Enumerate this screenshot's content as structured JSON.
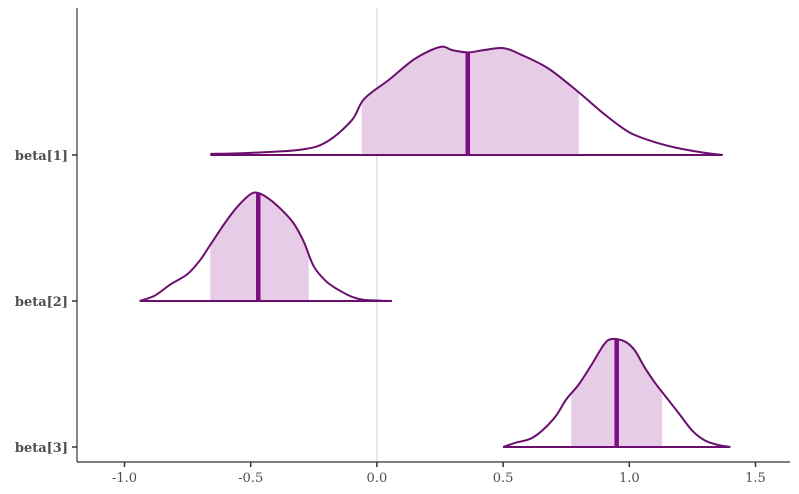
{
  "chart_data": {
    "type": "area",
    "title": "",
    "xlabel": "",
    "ylabel": "",
    "xlim": [
      -1.2,
      1.65
    ],
    "x_ticks": [
      -1.0,
      -0.5,
      0.0,
      0.5,
      1.0,
      1.5
    ],
    "x_tick_labels": [
      "-1.0",
      "-0.5",
      "0.0",
      "0.5",
      "1.0",
      "1.5"
    ],
    "reference_line_x": 0.0,
    "grid": false,
    "colors": {
      "outline": "#6a0f6e",
      "fill": "#e6cce6",
      "median": "#7b0f80",
      "ref_line": "#d9d9d9"
    },
    "series": [
      {
        "name": "beta[1]",
        "median": 0.36,
        "interval": [
          -0.06,
          0.8
        ],
        "density": [
          [
            -0.66,
            0.01
          ],
          [
            -0.5,
            0.02
          ],
          [
            -0.3,
            0.05
          ],
          [
            -0.2,
            0.12
          ],
          [
            -0.1,
            0.32
          ],
          [
            -0.05,
            0.52
          ],
          [
            0.05,
            0.7
          ],
          [
            0.15,
            0.89
          ],
          [
            0.25,
            1.0
          ],
          [
            0.3,
            0.97
          ],
          [
            0.36,
            0.95
          ],
          [
            0.42,
            0.97
          ],
          [
            0.5,
            0.99
          ],
          [
            0.57,
            0.93
          ],
          [
            0.68,
            0.8
          ],
          [
            0.8,
            0.58
          ],
          [
            0.9,
            0.38
          ],
          [
            1.0,
            0.21
          ],
          [
            1.1,
            0.12
          ],
          [
            1.2,
            0.06
          ],
          [
            1.3,
            0.02
          ],
          [
            1.37,
            0.0
          ]
        ]
      },
      {
        "name": "beta[2]",
        "median": -0.47,
        "interval": [
          -0.66,
          -0.27
        ],
        "density": [
          [
            -0.94,
            0.0
          ],
          [
            -0.88,
            0.05
          ],
          [
            -0.82,
            0.15
          ],
          [
            -0.75,
            0.25
          ],
          [
            -0.7,
            0.38
          ],
          [
            -0.66,
            0.52
          ],
          [
            -0.6,
            0.73
          ],
          [
            -0.55,
            0.88
          ],
          [
            -0.5,
            0.99
          ],
          [
            -0.47,
            1.0
          ],
          [
            -0.43,
            0.95
          ],
          [
            -0.38,
            0.85
          ],
          [
            -0.33,
            0.72
          ],
          [
            -0.29,
            0.55
          ],
          [
            -0.25,
            0.32
          ],
          [
            -0.2,
            0.18
          ],
          [
            -0.15,
            0.1
          ],
          [
            -0.1,
            0.04
          ],
          [
            -0.05,
            0.01
          ],
          [
            0.06,
            0.0
          ]
        ]
      },
      {
        "name": "beta[3]",
        "median": 0.95,
        "interval": [
          0.77,
          1.13
        ],
        "density": [
          [
            0.5,
            0.0
          ],
          [
            0.55,
            0.04
          ],
          [
            0.62,
            0.09
          ],
          [
            0.7,
            0.26
          ],
          [
            0.75,
            0.44
          ],
          [
            0.8,
            0.58
          ],
          [
            0.85,
            0.76
          ],
          [
            0.9,
            0.95
          ],
          [
            0.93,
            1.0
          ],
          [
            0.98,
            0.98
          ],
          [
            1.02,
            0.9
          ],
          [
            1.06,
            0.74
          ],
          [
            1.1,
            0.6
          ],
          [
            1.15,
            0.45
          ],
          [
            1.2,
            0.3
          ],
          [
            1.25,
            0.15
          ],
          [
            1.3,
            0.06
          ],
          [
            1.35,
            0.02
          ],
          [
            1.4,
            0.0
          ]
        ]
      }
    ]
  }
}
